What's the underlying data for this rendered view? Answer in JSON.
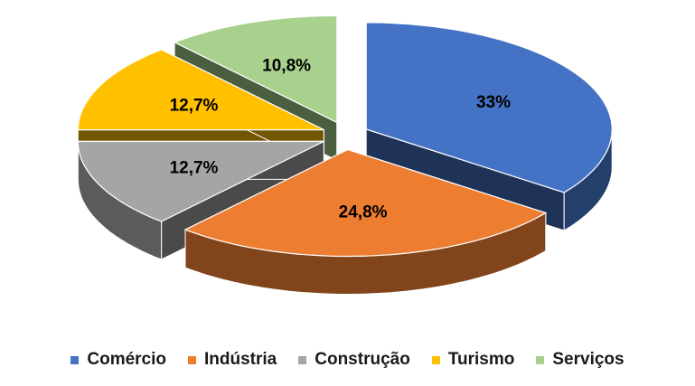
{
  "chart_data": {
    "type": "pie",
    "style": "3d-exploded",
    "categories": [
      "Comércio",
      "Indústria",
      "Construção",
      "Turismo",
      "Serviços"
    ],
    "values": [
      33,
      24.8,
      12.7,
      12.7,
      10.8
    ],
    "value_labels": [
      "33%",
      "24,8%",
      "12,7%",
      "12,7%",
      "10,8%"
    ],
    "colors": [
      "#4472C4",
      "#ED7D31",
      "#A5A5A5",
      "#FFC000",
      "#A9D18E"
    ],
    "title": "",
    "legend_position": "bottom"
  }
}
